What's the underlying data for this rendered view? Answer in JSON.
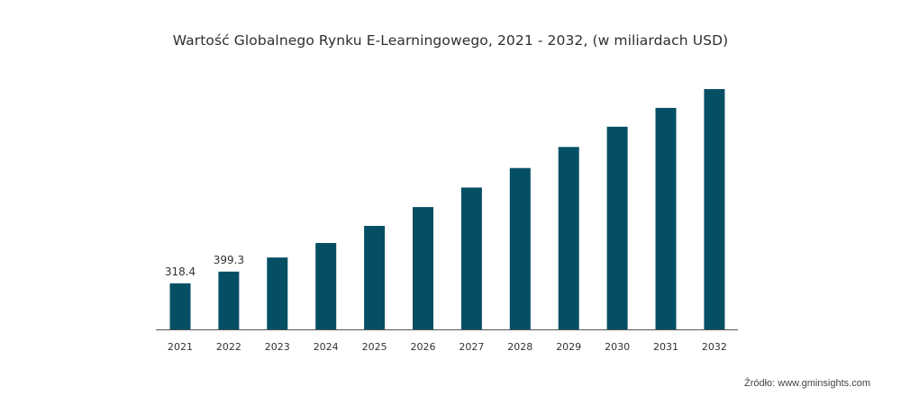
{
  "chart_data": {
    "type": "bar",
    "title": "Wartość Globalnego Rynku E-Learningowego, 2021 - 2032, (w miliardach USD)",
    "xlabel": "",
    "ylabel": "",
    "categories": [
      "2021",
      "2022",
      "2023",
      "2024",
      "2025",
      "2026",
      "2027",
      "2028",
      "2029",
      "2030",
      "2031",
      "2032"
    ],
    "values": [
      318.4,
      399.3,
      497,
      597,
      715,
      845,
      980,
      1115,
      1260,
      1400,
      1530,
      1660
    ],
    "data_labels": [
      "318.4",
      "399.3",
      "",
      "",
      "",
      "",
      "",
      "",
      "",
      "",
      "",
      ""
    ],
    "ylim": [
      0,
      1660
    ],
    "bar_color": "#054f65",
    "grid": false,
    "legend": "none"
  },
  "source": "Źródło: www.gminsights.com"
}
